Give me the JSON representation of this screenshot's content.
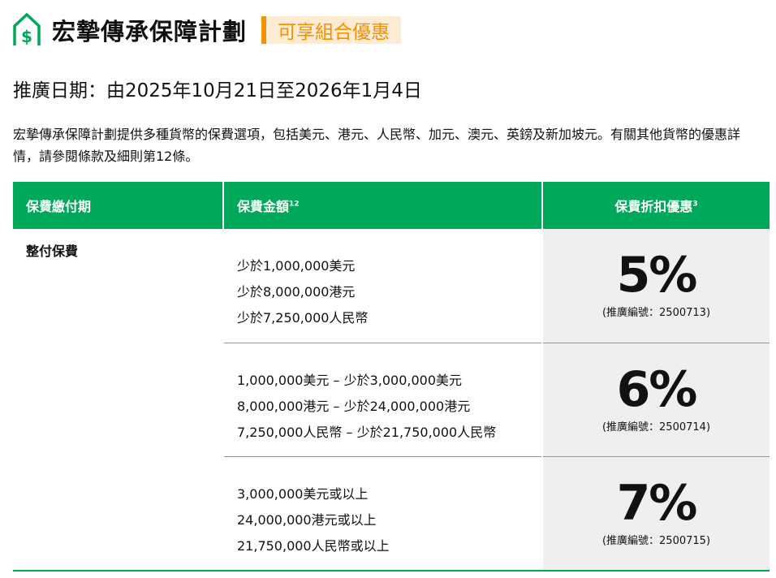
{
  "header": {
    "title": "宏摯傳承保障計劃",
    "badge": "可享組合優惠",
    "brand_color": "#00a859",
    "badge_color": "#f39200",
    "icon": "house-dollar-icon"
  },
  "promo_date": "推廣日期：由2025年10月21日至2026年1月4日",
  "description": "宏摯傳承保障計劃提供多種貨幣的保費選項，包括美元、港元、人民幣、加元、澳元、英鎊及新加坡元。有關其他貨幣的優惠詳情，請參閱條款及細則第12條。",
  "table": {
    "headers": [
      {
        "label": "保費繳付期",
        "sup": ""
      },
      {
        "label": "保費金額",
        "sup": "12"
      },
      {
        "label": "保費折扣優惠",
        "sup": "3"
      }
    ],
    "payment_term": "整付保費",
    "rows": [
      {
        "amounts": [
          "少於1,000,000美元",
          "少於8,000,000港元",
          "少於7,250,000人民幣"
        ],
        "discount": "5%",
        "code": "(推廣編號：2500713)"
      },
      {
        "amounts": [
          "1,000,000美元 – 少於3,000,000美元",
          "8,000,000港元 – 少於24,000,000港元",
          "7,250,000人民幣 – 少於21,750,000人民幣"
        ],
        "discount": "6%",
        "code": "(推廣編號：2500714)"
      },
      {
        "amounts": [
          "3,000,000美元或以上",
          "24,000,000港元或以上",
          "21,750,000人民幣或以上"
        ],
        "discount": "7%",
        "code": "(推廣編號：2500715)"
      }
    ]
  }
}
